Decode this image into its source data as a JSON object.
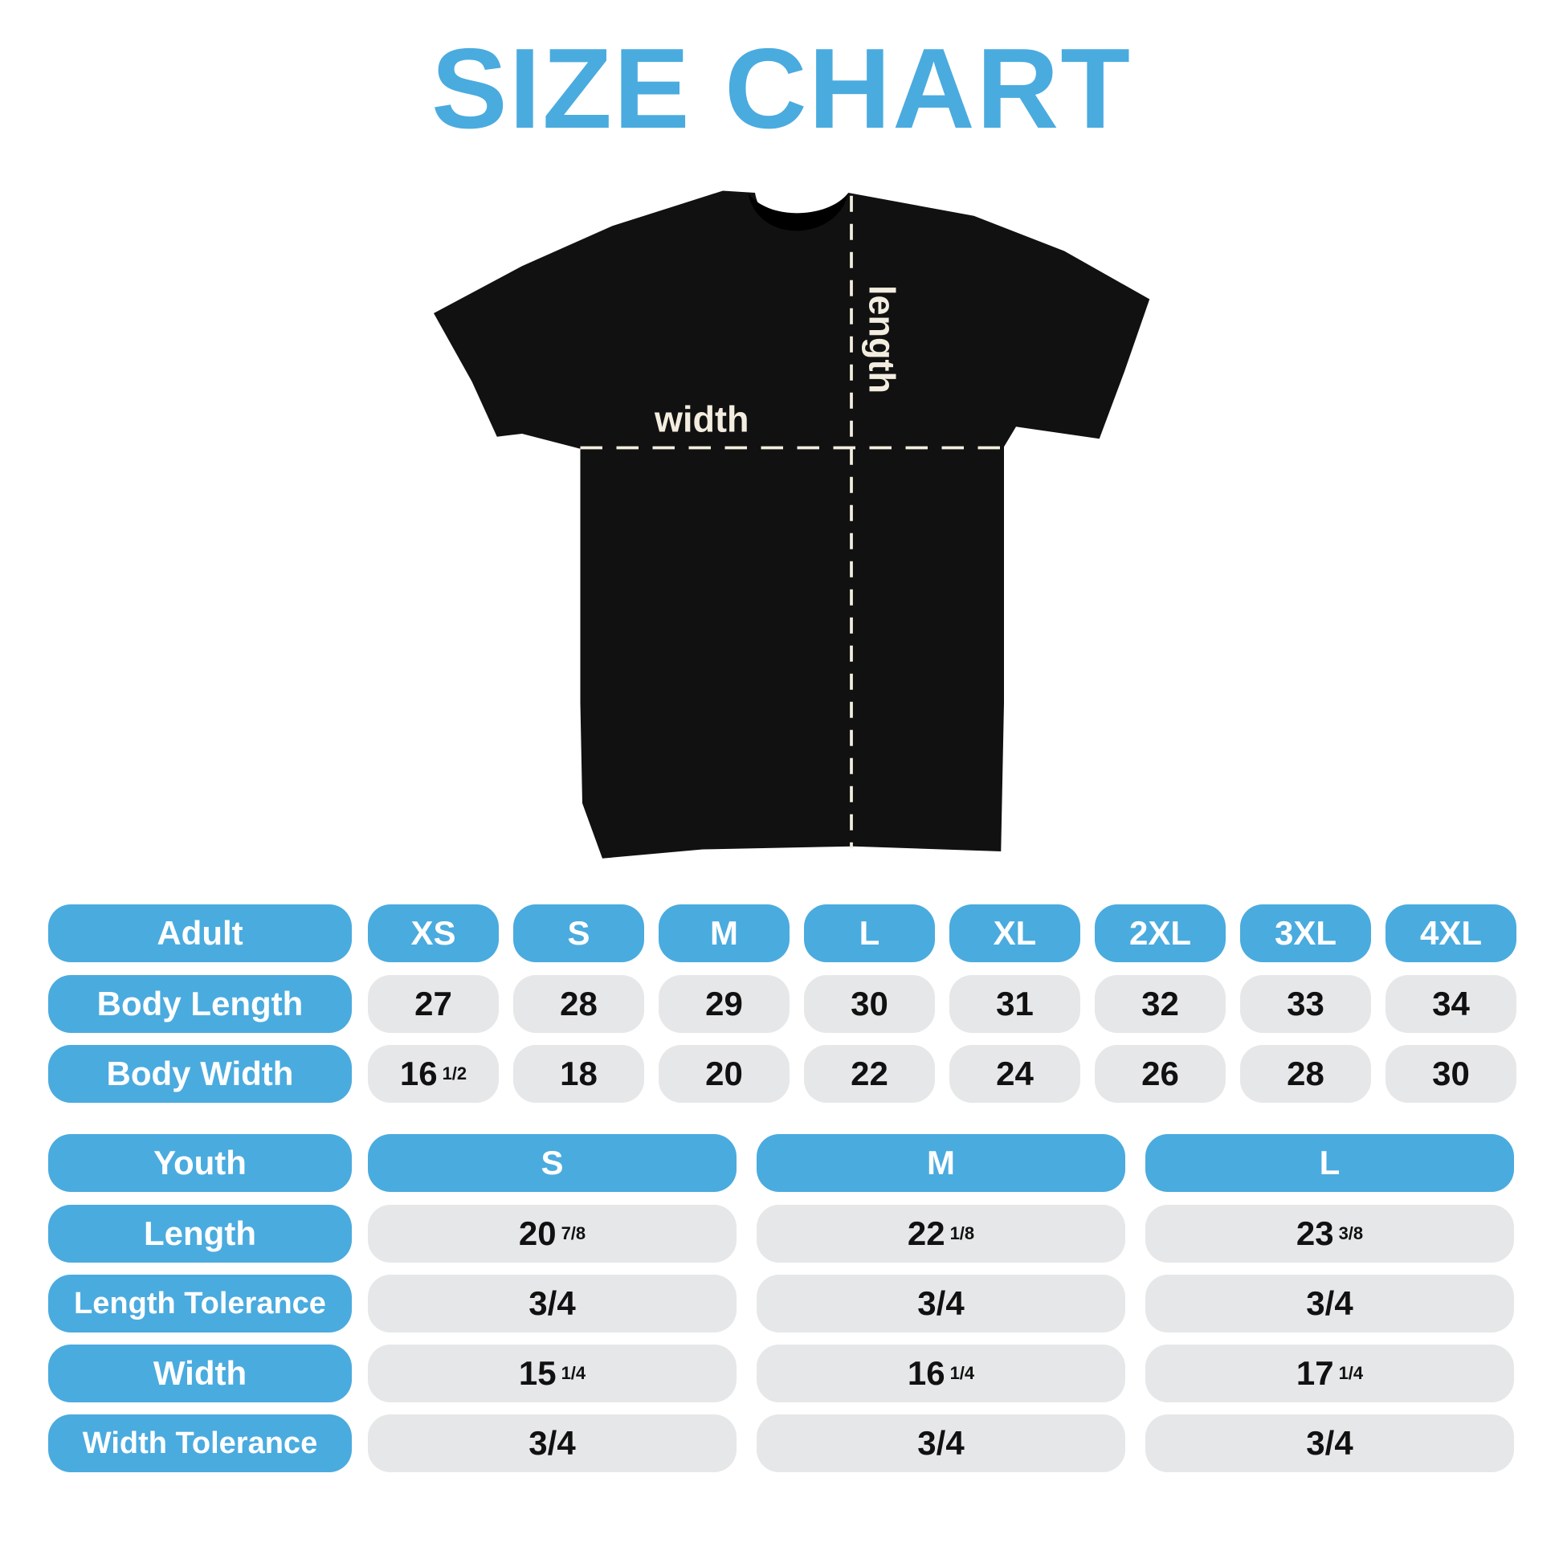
{
  "title": "SIZE CHART",
  "colors": {
    "accent": "#4AABDF",
    "cell": "#E6E7E8",
    "shirt": "#111111"
  },
  "diagram": {
    "width_label": "width",
    "length_label": "length"
  },
  "adult": {
    "header": "Adult",
    "sizes": [
      "XS",
      "S",
      "M",
      "L",
      "XL",
      "2XL",
      "3XL",
      "4XL"
    ],
    "rows": [
      {
        "label": "Body Length",
        "values": [
          {
            "whole": "27",
            "frac": ""
          },
          {
            "whole": "28",
            "frac": ""
          },
          {
            "whole": "29",
            "frac": ""
          },
          {
            "whole": "30",
            "frac": ""
          },
          {
            "whole": "31",
            "frac": ""
          },
          {
            "whole": "32",
            "frac": ""
          },
          {
            "whole": "33",
            "frac": ""
          },
          {
            "whole": "34",
            "frac": ""
          }
        ]
      },
      {
        "label": "Body Width",
        "values": [
          {
            "whole": "16",
            "frac": "1/2"
          },
          {
            "whole": "18",
            "frac": ""
          },
          {
            "whole": "20",
            "frac": ""
          },
          {
            "whole": "22",
            "frac": ""
          },
          {
            "whole": "24",
            "frac": ""
          },
          {
            "whole": "26",
            "frac": ""
          },
          {
            "whole": "28",
            "frac": ""
          },
          {
            "whole": "30",
            "frac": ""
          }
        ]
      }
    ]
  },
  "youth": {
    "header": "Youth",
    "sizes": [
      "S",
      "M",
      "L"
    ],
    "rows": [
      {
        "label": "Length",
        "values": [
          {
            "whole": "20",
            "frac": "7/8"
          },
          {
            "whole": "22",
            "frac": "1/8"
          },
          {
            "whole": "23",
            "frac": "3/8"
          }
        ]
      },
      {
        "label": "Length Tolerance",
        "values": [
          {
            "whole": "3/4",
            "frac": ""
          },
          {
            "whole": "3/4",
            "frac": ""
          },
          {
            "whole": "3/4",
            "frac": ""
          }
        ]
      },
      {
        "label": "Width",
        "values": [
          {
            "whole": "15",
            "frac": "1/4"
          },
          {
            "whole": "16",
            "frac": "1/4"
          },
          {
            "whole": "17",
            "frac": "1/4"
          }
        ]
      },
      {
        "label": "Width Tolerance",
        "values": [
          {
            "whole": "3/4",
            "frac": ""
          },
          {
            "whole": "3/4",
            "frac": ""
          },
          {
            "whole": "3/4",
            "frac": ""
          }
        ]
      }
    ]
  }
}
